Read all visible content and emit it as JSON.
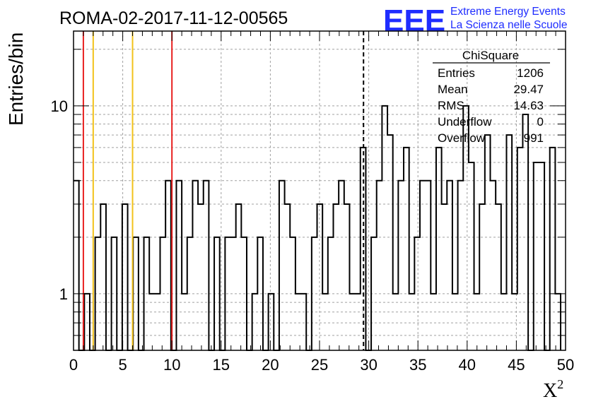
{
  "header": {
    "title": "ROMA-02-2017-11-12-00565",
    "logo_text": "EEE",
    "logo_line1": "Extreme Energy Events",
    "logo_line2": "La Scienza nelle Scuole"
  },
  "stats": {
    "name": "ChiSquare",
    "rows": [
      {
        "label": "Entries",
        "value": "1206"
      },
      {
        "label": "Mean",
        "value": "29.47"
      },
      {
        "label": "RMS",
        "value": "14.63"
      },
      {
        "label": "Underflow",
        "value": "0"
      },
      {
        "label": "Overflow",
        "value": "991"
      }
    ]
  },
  "colors": {
    "red_line": "#e8201f",
    "yellow_line": "#f2c21b",
    "histogram": "#000000",
    "grid": "#a0a0a0",
    "logo": "#1f2dff"
  },
  "chart_data": {
    "type": "bar",
    "title": "ROMA-02-2017-11-12-00565",
    "xlabel": "X",
    "xlabel_superscript": "2",
    "ylabel": "Entries/bin",
    "xlim": [
      0,
      50
    ],
    "ylim": [
      0.5,
      25
    ],
    "log_y": true,
    "grid": true,
    "bin_width": 1,
    "x_ticks": [
      "0",
      "5",
      "10",
      "15",
      "20",
      "25",
      "30",
      "35",
      "40",
      "45",
      "50"
    ],
    "y_ticks": [
      "1",
      "10"
    ],
    "bins": [
      [
        0,
        4
      ],
      [
        1,
        0
      ],
      [
        2,
        1
      ],
      [
        3,
        0
      ],
      [
        4,
        2
      ],
      [
        5,
        3
      ],
      [
        6,
        0
      ],
      [
        7,
        2
      ],
      [
        8,
        0
      ],
      [
        9,
        3
      ],
      [
        10,
        0
      ],
      [
        11,
        2
      ],
      [
        12,
        0
      ],
      [
        13,
        2
      ],
      [
        14,
        1
      ],
      [
        15,
        1
      ],
      [
        16,
        2
      ],
      [
        17,
        4
      ],
      [
        18,
        0
      ],
      [
        19,
        4
      ],
      [
        20,
        1
      ],
      [
        21,
        2
      ],
      [
        22,
        4
      ],
      [
        23,
        3
      ],
      [
        24,
        4
      ],
      [
        25,
        0
      ],
      [
        26,
        2
      ],
      [
        27,
        0
      ],
      [
        28,
        2
      ],
      [
        29,
        2
      ],
      [
        30,
        3
      ],
      [
        31,
        2
      ],
      [
        32,
        0
      ],
      [
        33,
        1
      ],
      [
        34,
        2
      ],
      [
        35,
        0
      ],
      [
        36,
        1
      ],
      [
        37,
        0
      ],
      [
        38,
        4
      ],
      [
        39,
        3
      ],
      [
        40,
        2
      ],
      [
        41,
        1
      ],
      [
        42,
        1
      ],
      [
        43,
        0
      ],
      [
        44,
        2
      ],
      [
        45,
        3
      ],
      [
        46,
        1
      ],
      [
        47,
        2
      ],
      [
        48,
        3
      ],
      [
        49,
        4
      ],
      [
        50,
        3
      ],
      [
        51,
        1
      ],
      [
        52,
        1
      ],
      [
        53,
        6
      ],
      [
        54,
        0
      ],
      [
        55,
        2
      ],
      [
        56,
        4
      ],
      [
        57,
        10
      ],
      [
        58,
        7
      ],
      [
        59,
        1
      ],
      [
        60,
        4
      ],
      [
        61,
        6
      ],
      [
        62,
        1
      ],
      [
        63,
        2
      ],
      [
        64,
        4
      ],
      [
        65,
        4
      ],
      [
        66,
        1
      ],
      [
        67,
        6
      ],
      [
        68,
        3
      ],
      [
        69,
        4
      ],
      [
        70,
        1
      ],
      [
        71,
        4
      ],
      [
        72,
        10
      ],
      [
        73,
        5
      ],
      [
        74,
        1
      ],
      [
        75,
        3
      ],
      [
        76,
        7
      ],
      [
        77,
        4
      ],
      [
        78,
        3
      ],
      [
        79,
        1
      ],
      [
        80,
        7
      ],
      [
        81,
        1
      ],
      [
        82,
        6
      ],
      [
        83,
        9
      ],
      [
        84,
        0
      ],
      [
        85,
        5
      ],
      [
        86,
        5
      ],
      [
        87,
        0
      ],
      [
        88,
        6
      ],
      [
        89,
        1
      ]
    ],
    "bin_width_units": 0.55,
    "vertical_lines": [
      {
        "x": 1,
        "color": "#e8201f",
        "style": "solid"
      },
      {
        "x": 2,
        "color": "#f2c21b",
        "style": "solid"
      },
      {
        "x": 6,
        "color": "#f2c21b",
        "style": "solid"
      },
      {
        "x": 10,
        "color": "#e8201f",
        "style": "solid"
      },
      {
        "x": 29.47,
        "color": "#000000",
        "style": "dashed"
      }
    ]
  }
}
